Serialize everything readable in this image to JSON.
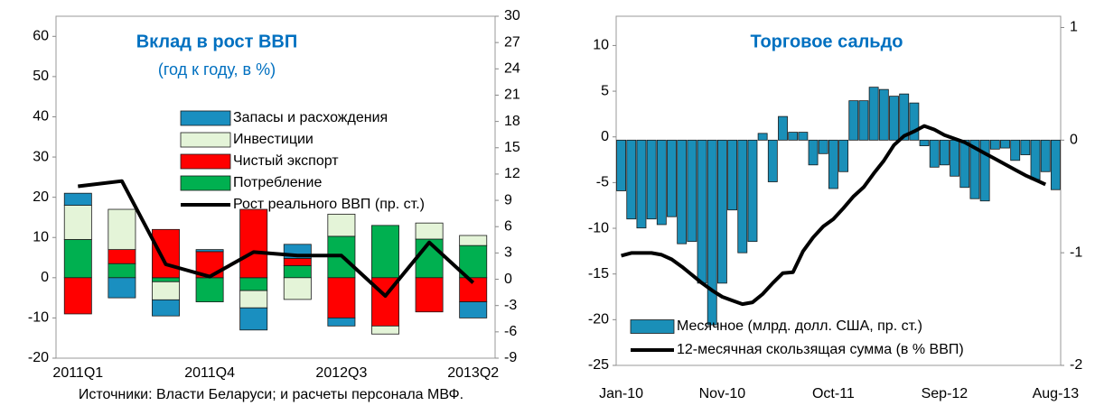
{
  "chart_data": [
    {
      "type": "bar",
      "stacked": true,
      "title": "Вклад в рост ВВП",
      "subtitle": "(год к году, в %)",
      "source": "Источники: Власти Беларуси; и расчеты персонала МВФ.",
      "legend": "upper center",
      "categories": [
        "2011Q1",
        null,
        null,
        "2011Q4",
        null,
        null,
        "2012Q3",
        null,
        null,
        "2013Q2"
      ],
      "series": [
        {
          "name": "Запасы и расхождения",
          "type": "bar",
          "color": "#1a8fc0",
          "values": [
            3,
            -5,
            -4,
            0.5,
            -5.5,
            3.5,
            -2,
            0,
            0,
            -4
          ]
        },
        {
          "name": "Инвестиции",
          "type": "bar",
          "color": "#e4f4d8",
          "values": [
            8.5,
            10,
            -4.5,
            0,
            -4.3,
            -5.4,
            5.5,
            -2,
            4,
            2.5
          ]
        },
        {
          "name": "Чистый экспорт",
          "type": "bar",
          "color": "#ff0000",
          "values": [
            -9,
            3.5,
            12,
            6.5,
            17,
            1.8,
            -10,
            -12,
            -8.5,
            -6
          ]
        },
        {
          "name": "Потребление",
          "type": "bar",
          "color": "#00b050",
          "values": [
            9.5,
            3.5,
            -1,
            -6,
            -3.2,
            3,
            10.3,
            13,
            9.6,
            8
          ]
        },
        {
          "name": "Рост реального ВВП (пр. ст.)",
          "type": "line",
          "axis": "y2",
          "color": "#000000",
          "values": [
            10.6,
            11.2,
            1.7,
            0.3,
            3.1,
            2.7,
            2.7,
            -1.9,
            4.2,
            -0.4
          ]
        }
      ],
      "ylim": [
        -20,
        65
      ],
      "yticks": [
        -20,
        -10,
        0,
        10,
        20,
        30,
        40,
        50,
        60
      ],
      "y2lim": [
        -9,
        30
      ],
      "y2ticks": [
        -9,
        -6,
        -3,
        0,
        3,
        6,
        9,
        12,
        15,
        18,
        21,
        24,
        27,
        30
      ],
      "grid": false
    },
    {
      "type": "bar",
      "stacked": false,
      "title": "Торговое сальдо",
      "legend": "lower left",
      "categories": [
        "Jan-10",
        null,
        null,
        null,
        null,
        null,
        null,
        null,
        null,
        null,
        "Nov-10",
        null,
        null,
        null,
        null,
        null,
        null,
        null,
        null,
        null,
        null,
        "Oct-11",
        null,
        null,
        null,
        null,
        null,
        null,
        null,
        null,
        null,
        null,
        "Sep-12",
        null,
        null,
        null,
        null,
        null,
        null,
        null,
        null,
        null,
        null,
        "Aug-13"
      ],
      "series": [
        {
          "name": "Месячное (млрд. долл. США, пр. ст.)",
          "type": "bar",
          "axis": "y2",
          "color": "#1a8fb8",
          "values": [
            -0.45,
            -0.7,
            -0.78,
            -0.7,
            -0.75,
            -0.68,
            -0.92,
            -0.9,
            -1.27,
            -1.64,
            -1.27,
            -0.62,
            -1.0,
            -0.9,
            0.06,
            -0.37,
            0.21,
            0.07,
            0.07,
            -0.22,
            -0.12,
            -0.43,
            -0.28,
            0.35,
            0.35,
            0.47,
            0.45,
            0.39,
            0.41,
            0.33,
            -0.05,
            -0.24,
            -0.22,
            -0.32,
            -0.42,
            -0.52,
            -0.54,
            -0.08,
            -0.07,
            -0.18,
            -0.13,
            -0.35,
            -0.28,
            -0.44
          ]
        },
        {
          "name": "12-месячная скользящая сумма (в % ВВП)",
          "type": "line",
          "color": "#000000",
          "values": [
            -13.0,
            -12.7,
            -12.7,
            -12.7,
            -12.9,
            -13.4,
            -14.2,
            -15.1,
            -16.0,
            -16.8,
            -17.5,
            -17.9,
            -18.3,
            -18.1,
            -17.2,
            -16.0,
            -14.9,
            -14.8,
            -12.5,
            -11.0,
            -9.8,
            -9.0,
            -7.8,
            -6.5,
            -5.5,
            -4.0,
            -2.6,
            -0.9,
            0.1,
            0.6,
            1.2,
            0.8,
            0.2,
            -0.2,
            -0.6,
            -1.2,
            -1.8,
            -2.4,
            -3.0,
            -3.6,
            -4.2,
            -4.7,
            -5.2,
            null
          ]
        }
      ],
      "ylim": [
        -25,
        13.2
      ],
      "yticks": [
        -25,
        -20,
        -15,
        -10,
        -5,
        0,
        5,
        10
      ],
      "y2lim": [
        -2,
        1.1
      ],
      "y2ticks": [
        -2,
        -1,
        0,
        1
      ],
      "grid": false
    }
  ]
}
